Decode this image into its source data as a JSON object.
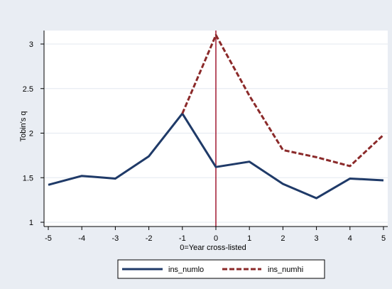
{
  "chart_data": {
    "type": "line",
    "title": "",
    "xlabel": "0=Year cross-listed",
    "ylabel": "Tobin's q",
    "x": [
      -5,
      -4,
      -3,
      -2,
      -1,
      0,
      1,
      2,
      3,
      4,
      5
    ],
    "xlim": [
      -5,
      5
    ],
    "ylim": [
      1,
      3
    ],
    "yticks": [
      1,
      1.5,
      2,
      2.5,
      3
    ],
    "xticks": [
      -5,
      -4,
      -3,
      -2,
      -1,
      0,
      1,
      2,
      3,
      4,
      5
    ],
    "grid": "horizontal gridlines",
    "vline_at_x": 0,
    "vline_color": "#a01830",
    "legend_position": "bottom",
    "series": [
      {
        "name": "ins_numlo",
        "color": "#1f3a68",
        "style": "solid",
        "x": [
          -5,
          -4,
          -3,
          -2,
          -1,
          0,
          1,
          2,
          3,
          4,
          5
        ],
        "values": [
          1.42,
          1.52,
          1.49,
          1.74,
          2.22,
          1.62,
          1.68,
          1.43,
          1.27,
          1.49,
          1.47
        ]
      },
      {
        "name": "ins_numhi",
        "color": "#8b2a2a",
        "style": "dashed",
        "x": [
          -1,
          0,
          1,
          2,
          3,
          4,
          5
        ],
        "values": [
          2.22,
          3.1,
          2.42,
          1.81,
          1.73,
          1.63,
          1.98
        ]
      }
    ]
  },
  "colors": {
    "outer_background": "#e9edf3",
    "plot_background": "#ffffff",
    "grid": "#e3e8ef",
    "axis": "#000000"
  }
}
